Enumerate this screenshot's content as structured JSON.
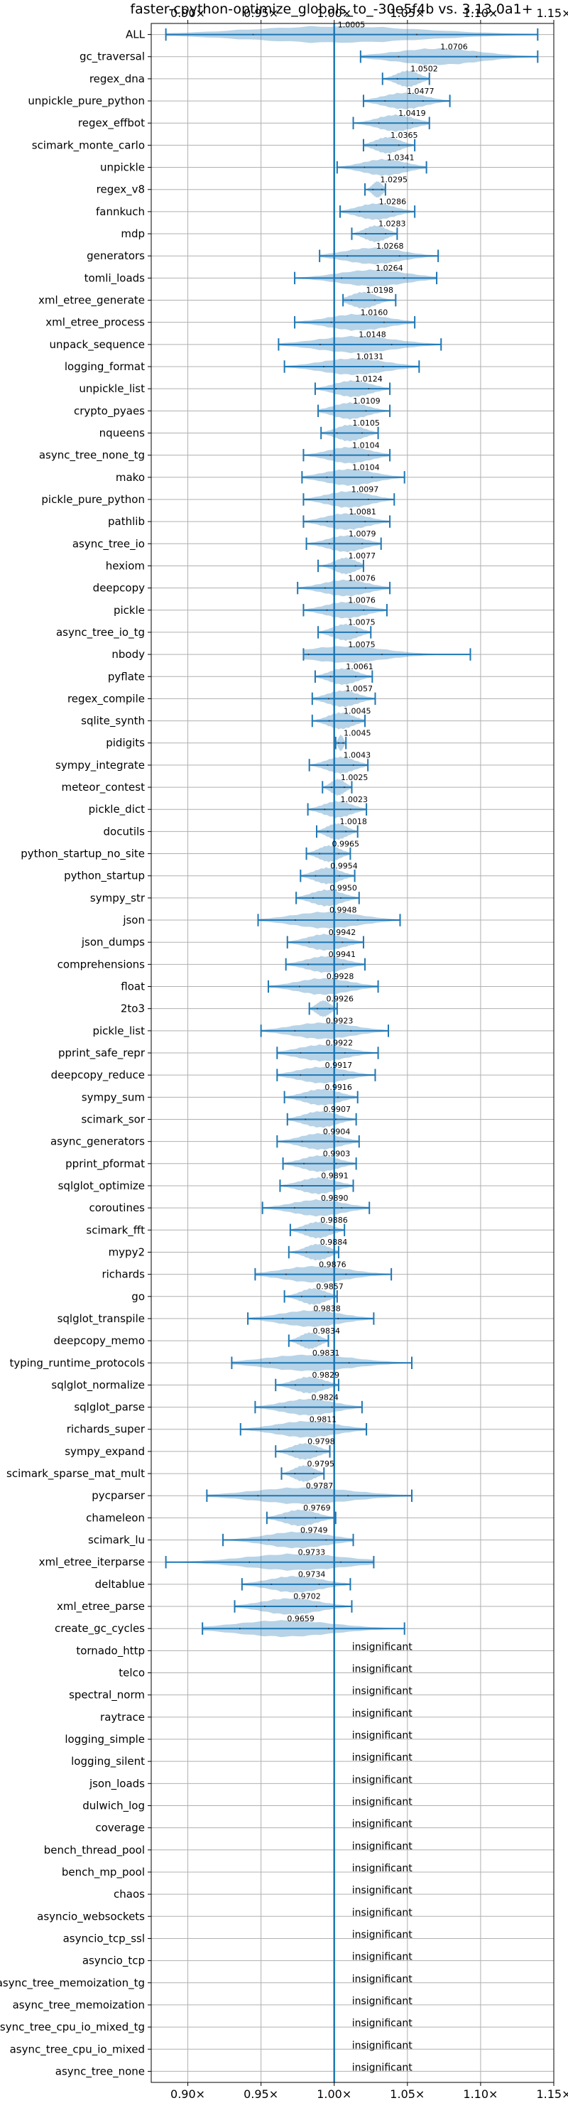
{
  "chart_data": {
    "type": "violin",
    "title": "faster-cpython-optimize_globals_to_-30e5f4b vs. 3.13.0a1+",
    "xlim": [
      0.875,
      1.15
    ],
    "xticks": [
      0.9,
      0.95,
      1.0,
      1.05,
      1.1,
      1.15
    ],
    "xtick_labels": [
      "0.90×",
      "0.95×",
      "1.00×",
      "1.05×",
      "1.10×",
      "1.15×"
    ],
    "reference_line": 1.0,
    "grid": true,
    "colors": {
      "violin": "#1f77b4",
      "line": "#1f77b4",
      "grid": "#b0b0b0"
    },
    "insignificant_label": "insignificant",
    "benchmarks": [
      {
        "name": "ALL",
        "value": "1.0005",
        "mean": 1.0005,
        "min": 0.885,
        "max": 1.139,
        "significant": true
      },
      {
        "name": "gc_traversal",
        "value": "1.0706",
        "mean": 1.0706,
        "min": 1.018,
        "max": 1.139,
        "significant": true
      },
      {
        "name": "regex_dna",
        "value": "1.0502",
        "mean": 1.0502,
        "min": 1.033,
        "max": 1.065,
        "significant": true
      },
      {
        "name": "unpickle_pure_python",
        "value": "1.0477",
        "mean": 1.0477,
        "min": 1.02,
        "max": 1.079,
        "significant": true
      },
      {
        "name": "regex_effbot",
        "value": "1.0419",
        "mean": 1.0419,
        "min": 1.013,
        "max": 1.065,
        "significant": true
      },
      {
        "name": "scimark_monte_carlo",
        "value": "1.0365",
        "mean": 1.0365,
        "min": 1.02,
        "max": 1.055,
        "significant": true
      },
      {
        "name": "unpickle",
        "value": "1.0341",
        "mean": 1.0341,
        "min": 1.002,
        "max": 1.063,
        "significant": true
      },
      {
        "name": "regex_v8",
        "value": "1.0295",
        "mean": 1.0295,
        "min": 1.021,
        "max": 1.035,
        "significant": true
      },
      {
        "name": "fannkuch",
        "value": "1.0286",
        "mean": 1.0286,
        "min": 1.004,
        "max": 1.055,
        "significant": true
      },
      {
        "name": "mdp",
        "value": "1.0283",
        "mean": 1.0283,
        "min": 1.012,
        "max": 1.043,
        "significant": true
      },
      {
        "name": "generators",
        "value": "1.0268",
        "mean": 1.0268,
        "min": 0.99,
        "max": 1.071,
        "significant": true
      },
      {
        "name": "tomli_loads",
        "value": "1.0264",
        "mean": 1.0264,
        "min": 0.973,
        "max": 1.07,
        "significant": true
      },
      {
        "name": "xml_etree_generate",
        "value": "1.0198",
        "mean": 1.0198,
        "min": 1.006,
        "max": 1.042,
        "significant": true
      },
      {
        "name": "xml_etree_process",
        "value": "1.0160",
        "mean": 1.016,
        "min": 0.973,
        "max": 1.055,
        "significant": true
      },
      {
        "name": "unpack_sequence",
        "value": "1.0148",
        "mean": 1.0148,
        "min": 0.962,
        "max": 1.073,
        "significant": true
      },
      {
        "name": "logging_format",
        "value": "1.0131",
        "mean": 1.0131,
        "min": 0.966,
        "max": 1.058,
        "significant": true
      },
      {
        "name": "unpickle_list",
        "value": "1.0124",
        "mean": 1.0124,
        "min": 0.987,
        "max": 1.038,
        "significant": true
      },
      {
        "name": "crypto_pyaes",
        "value": "1.0109",
        "mean": 1.0109,
        "min": 0.989,
        "max": 1.038,
        "significant": true
      },
      {
        "name": "nqueens",
        "value": "1.0105",
        "mean": 1.0105,
        "min": 0.991,
        "max": 1.03,
        "significant": true
      },
      {
        "name": "async_tree_none_tg",
        "value": "1.0104",
        "mean": 1.0104,
        "min": 0.979,
        "max": 1.038,
        "significant": true
      },
      {
        "name": "mako",
        "value": "1.0104",
        "mean": 1.0104,
        "min": 0.978,
        "max": 1.048,
        "significant": true
      },
      {
        "name": "pickle_pure_python",
        "value": "1.0097",
        "mean": 1.0097,
        "min": 0.979,
        "max": 1.041,
        "significant": true
      },
      {
        "name": "pathlib",
        "value": "1.0081",
        "mean": 1.0081,
        "min": 0.979,
        "max": 1.038,
        "significant": true
      },
      {
        "name": "async_tree_io",
        "value": "1.0079",
        "mean": 1.0079,
        "min": 0.981,
        "max": 1.032,
        "significant": true
      },
      {
        "name": "hexiom",
        "value": "1.0077",
        "mean": 1.0077,
        "min": 0.989,
        "max": 1.02,
        "significant": true
      },
      {
        "name": "deepcopy",
        "value": "1.0076",
        "mean": 1.0076,
        "min": 0.975,
        "max": 1.038,
        "significant": true
      },
      {
        "name": "pickle",
        "value": "1.0076",
        "mean": 1.0076,
        "min": 0.979,
        "max": 1.036,
        "significant": true
      },
      {
        "name": "async_tree_io_tg",
        "value": "1.0075",
        "mean": 1.0075,
        "min": 0.989,
        "max": 1.025,
        "significant": true
      },
      {
        "name": "nbody",
        "value": "1.0075",
        "mean": 1.0075,
        "min": 0.979,
        "max": 1.093,
        "significant": true
      },
      {
        "name": "pyflate",
        "value": "1.0061",
        "mean": 1.0061,
        "min": 0.987,
        "max": 1.026,
        "significant": true
      },
      {
        "name": "regex_compile",
        "value": "1.0057",
        "mean": 1.0057,
        "min": 0.985,
        "max": 1.028,
        "significant": true
      },
      {
        "name": "sqlite_synth",
        "value": "1.0045",
        "mean": 1.0045,
        "min": 0.985,
        "max": 1.021,
        "significant": true
      },
      {
        "name": "pidigits",
        "value": "1.0045",
        "mean": 1.0045,
        "min": 1.001,
        "max": 1.008,
        "significant": true
      },
      {
        "name": "sympy_integrate",
        "value": "1.0043",
        "mean": 1.0043,
        "min": 0.983,
        "max": 1.023,
        "significant": true
      },
      {
        "name": "meteor_contest",
        "value": "1.0025",
        "mean": 1.0025,
        "min": 0.992,
        "max": 1.012,
        "significant": true
      },
      {
        "name": "pickle_dict",
        "value": "1.0023",
        "mean": 1.0023,
        "min": 0.982,
        "max": 1.022,
        "significant": true
      },
      {
        "name": "docutils",
        "value": "1.0018",
        "mean": 1.0018,
        "min": 0.988,
        "max": 1.016,
        "significant": true
      },
      {
        "name": "python_startup_no_site",
        "value": "0.9965",
        "mean": 0.9965,
        "min": 0.981,
        "max": 1.011,
        "significant": true
      },
      {
        "name": "python_startup",
        "value": "0.9954",
        "mean": 0.9954,
        "min": 0.977,
        "max": 1.014,
        "significant": true
      },
      {
        "name": "sympy_str",
        "value": "0.9950",
        "mean": 0.995,
        "min": 0.974,
        "max": 1.017,
        "significant": true
      },
      {
        "name": "json",
        "value": "0.9948",
        "mean": 0.9948,
        "min": 0.948,
        "max": 1.045,
        "significant": true
      },
      {
        "name": "json_dumps",
        "value": "0.9942",
        "mean": 0.9942,
        "min": 0.968,
        "max": 1.02,
        "significant": true
      },
      {
        "name": "comprehensions",
        "value": "0.9941",
        "mean": 0.9941,
        "min": 0.967,
        "max": 1.021,
        "significant": true
      },
      {
        "name": "float",
        "value": "0.9928",
        "mean": 0.9928,
        "min": 0.955,
        "max": 1.03,
        "significant": true
      },
      {
        "name": "2to3",
        "value": "0.9926",
        "mean": 0.9926,
        "min": 0.983,
        "max": 1.002,
        "significant": true
      },
      {
        "name": "pickle_list",
        "value": "0.9923",
        "mean": 0.9923,
        "min": 0.95,
        "max": 1.037,
        "significant": true
      },
      {
        "name": "pprint_safe_repr",
        "value": "0.9922",
        "mean": 0.9922,
        "min": 0.961,
        "max": 1.03,
        "significant": true
      },
      {
        "name": "deepcopy_reduce",
        "value": "0.9917",
        "mean": 0.9917,
        "min": 0.961,
        "max": 1.028,
        "significant": true
      },
      {
        "name": "sympy_sum",
        "value": "0.9916",
        "mean": 0.9916,
        "min": 0.966,
        "max": 1.016,
        "significant": true
      },
      {
        "name": "scimark_sor",
        "value": "0.9907",
        "mean": 0.9907,
        "min": 0.968,
        "max": 1.015,
        "significant": true
      },
      {
        "name": "async_generators",
        "value": "0.9904",
        "mean": 0.9904,
        "min": 0.961,
        "max": 1.017,
        "significant": true
      },
      {
        "name": "pprint_pformat",
        "value": "0.9903",
        "mean": 0.9903,
        "min": 0.965,
        "max": 1.015,
        "significant": true
      },
      {
        "name": "sqlglot_optimize",
        "value": "0.9891",
        "mean": 0.9891,
        "min": 0.963,
        "max": 1.013,
        "significant": true
      },
      {
        "name": "coroutines",
        "value": "0.9890",
        "mean": 0.989,
        "min": 0.951,
        "max": 1.024,
        "significant": true
      },
      {
        "name": "scimark_fft",
        "value": "0.9886",
        "mean": 0.9886,
        "min": 0.97,
        "max": 1.007,
        "significant": true
      },
      {
        "name": "mypy2",
        "value": "0.9884",
        "mean": 0.9884,
        "min": 0.969,
        "max": 1.003,
        "significant": true
      },
      {
        "name": "richards",
        "value": "0.9876",
        "mean": 0.9876,
        "min": 0.946,
        "max": 1.039,
        "significant": true
      },
      {
        "name": "go",
        "value": "0.9857",
        "mean": 0.9857,
        "min": 0.966,
        "max": 1.002,
        "significant": true
      },
      {
        "name": "sqlglot_transpile",
        "value": "0.9838",
        "mean": 0.9838,
        "min": 0.941,
        "max": 1.027,
        "significant": true
      },
      {
        "name": "deepcopy_memo",
        "value": "0.9834",
        "mean": 0.9834,
        "min": 0.969,
        "max": 0.996,
        "significant": true
      },
      {
        "name": "typing_runtime_protocols",
        "value": "0.9831",
        "mean": 0.9831,
        "min": 0.93,
        "max": 1.053,
        "significant": true
      },
      {
        "name": "sqlglot_normalize",
        "value": "0.9829",
        "mean": 0.9829,
        "min": 0.96,
        "max": 1.003,
        "significant": true
      },
      {
        "name": "sqlglot_parse",
        "value": "0.9824",
        "mean": 0.9824,
        "min": 0.946,
        "max": 1.019,
        "significant": true
      },
      {
        "name": "richards_super",
        "value": "0.9811",
        "mean": 0.9811,
        "min": 0.936,
        "max": 1.022,
        "significant": true
      },
      {
        "name": "sympy_expand",
        "value": "0.9798",
        "mean": 0.9798,
        "min": 0.96,
        "max": 0.997,
        "significant": true
      },
      {
        "name": "scimark_sparse_mat_mult",
        "value": "0.9795",
        "mean": 0.9795,
        "min": 0.964,
        "max": 0.993,
        "significant": true
      },
      {
        "name": "pycparser",
        "value": "0.9787",
        "mean": 0.9787,
        "min": 0.913,
        "max": 1.053,
        "significant": true
      },
      {
        "name": "chameleon",
        "value": "0.9769",
        "mean": 0.9769,
        "min": 0.954,
        "max": 1.001,
        "significant": true
      },
      {
        "name": "scimark_lu",
        "value": "0.9749",
        "mean": 0.9749,
        "min": 0.924,
        "max": 1.013,
        "significant": true
      },
      {
        "name": "xml_etree_iterparse",
        "value": "0.9733",
        "mean": 0.9733,
        "min": 0.885,
        "max": 1.027,
        "significant": true
      },
      {
        "name": "deltablue",
        "value": "0.9734",
        "mean": 0.9734,
        "min": 0.937,
        "max": 1.011,
        "significant": true
      },
      {
        "name": "xml_etree_parse",
        "value": "0.9702",
        "mean": 0.9702,
        "min": 0.932,
        "max": 1.012,
        "significant": true
      },
      {
        "name": "create_gc_cycles",
        "value": "0.9659",
        "mean": 0.9659,
        "min": 0.91,
        "max": 1.048,
        "significant": true
      },
      {
        "name": "tornado_http",
        "significant": false
      },
      {
        "name": "telco",
        "significant": false
      },
      {
        "name": "spectral_norm",
        "significant": false
      },
      {
        "name": "raytrace",
        "significant": false
      },
      {
        "name": "logging_simple",
        "significant": false
      },
      {
        "name": "logging_silent",
        "significant": false
      },
      {
        "name": "json_loads",
        "significant": false
      },
      {
        "name": "dulwich_log",
        "significant": false
      },
      {
        "name": "coverage",
        "significant": false
      },
      {
        "name": "bench_thread_pool",
        "significant": false
      },
      {
        "name": "bench_mp_pool",
        "significant": false
      },
      {
        "name": "chaos",
        "significant": false
      },
      {
        "name": "asyncio_websockets",
        "significant": false
      },
      {
        "name": "asyncio_tcp_ssl",
        "significant": false
      },
      {
        "name": "asyncio_tcp",
        "significant": false
      },
      {
        "name": "async_tree_memoization_tg",
        "significant": false
      },
      {
        "name": "async_tree_memoization",
        "significant": false
      },
      {
        "name": "async_tree_cpu_io_mixed_tg",
        "significant": false
      },
      {
        "name": "async_tree_cpu_io_mixed",
        "significant": false
      },
      {
        "name": "async_tree_none",
        "significant": false
      }
    ]
  }
}
